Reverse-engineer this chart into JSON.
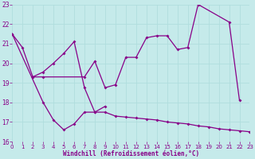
{
  "bg_color": "#c5eaea",
  "line_color": "#880088",
  "grid_color": "#aadddd",
  "xlabel": "Windchill (Refroidissement éolien,°C)",
  "xlim": [
    0,
    23
  ],
  "ylim": [
    16,
    23
  ],
  "xticks": [
    0,
    1,
    2,
    3,
    4,
    5,
    6,
    7,
    8,
    9,
    10,
    11,
    12,
    13,
    14,
    15,
    16,
    17,
    18,
    19,
    20,
    21,
    22,
    23
  ],
  "yticks": [
    16,
    17,
    18,
    19,
    20,
    21,
    22,
    23
  ],
  "line1_x": [
    0,
    1,
    2,
    3,
    7,
    8,
    9,
    10,
    11,
    12,
    13,
    14,
    15,
    16,
    17,
    18,
    21,
    22
  ],
  "line1_y": [
    21.5,
    20.8,
    19.3,
    19.3,
    19.3,
    20.1,
    18.75,
    18.9,
    20.3,
    20.3,
    21.3,
    21.4,
    21.4,
    20.7,
    20.8,
    23.0,
    22.1,
    18.1
  ],
  "line2_x": [
    0,
    3,
    4,
    5,
    6,
    7,
    8,
    9
  ],
  "line2_y": [
    21.5,
    18.0,
    17.1,
    16.6,
    16.9,
    17.5,
    17.5,
    17.8
  ],
  "line3_x": [
    2,
    3,
    4,
    5,
    6,
    7,
    8,
    9,
    10,
    11,
    12,
    13,
    14,
    15,
    16,
    17,
    18,
    19,
    20,
    21,
    22,
    23
  ],
  "line3_y": [
    19.3,
    19.55,
    20.0,
    20.5,
    21.1,
    18.75,
    17.5,
    17.5,
    17.3,
    17.25,
    17.2,
    17.15,
    17.1,
    17.0,
    16.95,
    16.9,
    16.8,
    16.75,
    16.65,
    16.6,
    16.55,
    16.5
  ]
}
